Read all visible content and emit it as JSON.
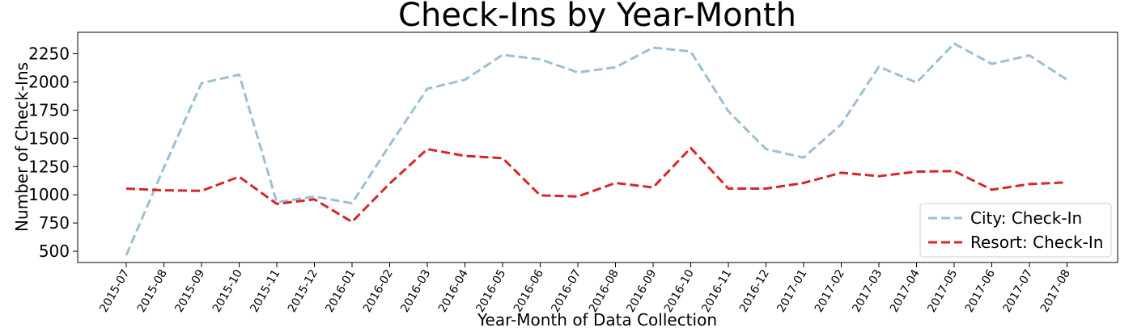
{
  "chart_data": {
    "type": "line",
    "title": "Check-Ins by Year-Month",
    "xlabel": "Year-Month of Data Collection",
    "ylabel": "Number of Check-Ins",
    "categories": [
      "2015-07",
      "2015-08",
      "2015-09",
      "2015-10",
      "2015-11",
      "2015-12",
      "2016-01",
      "2016-02",
      "2016-03",
      "2016-04",
      "2016-05",
      "2016-06",
      "2016-07",
      "2016-08",
      "2016-09",
      "2016-10",
      "2016-11",
      "2016-12",
      "2017-01",
      "2017-02",
      "2017-03",
      "2017-04",
      "2017-05",
      "2017-06",
      "2017-07",
      "2017-08"
    ],
    "yticks": [
      500,
      750,
      1000,
      1250,
      1500,
      1750,
      2000,
      2250
    ],
    "ylim": [
      400,
      2440
    ],
    "grid": false,
    "legend_position": "bottom-right",
    "series": [
      {
        "name": "City: Check-In",
        "color": "#9ebfd3",
        "style": "dashed",
        "values": [
          465,
          1240,
          1990,
          2065,
          935,
          985,
          925,
          1440,
          1940,
          2020,
          2240,
          2200,
          2085,
          2130,
          2305,
          2270,
          1740,
          1405,
          1330,
          1625,
          2135,
          1995,
          2340,
          2160,
          2235,
          2020
        ]
      },
      {
        "name": "Resort: Check-In",
        "color": "#d62728",
        "style": "dashed",
        "values": [
          1055,
          1040,
          1035,
          1160,
          920,
          960,
          760,
          1100,
          1405,
          1345,
          1325,
          995,
          985,
          1105,
          1065,
          1415,
          1055,
          1055,
          1105,
          1195,
          1165,
          1205,
          1210,
          1045,
          1095,
          1110
        ]
      }
    ]
  }
}
